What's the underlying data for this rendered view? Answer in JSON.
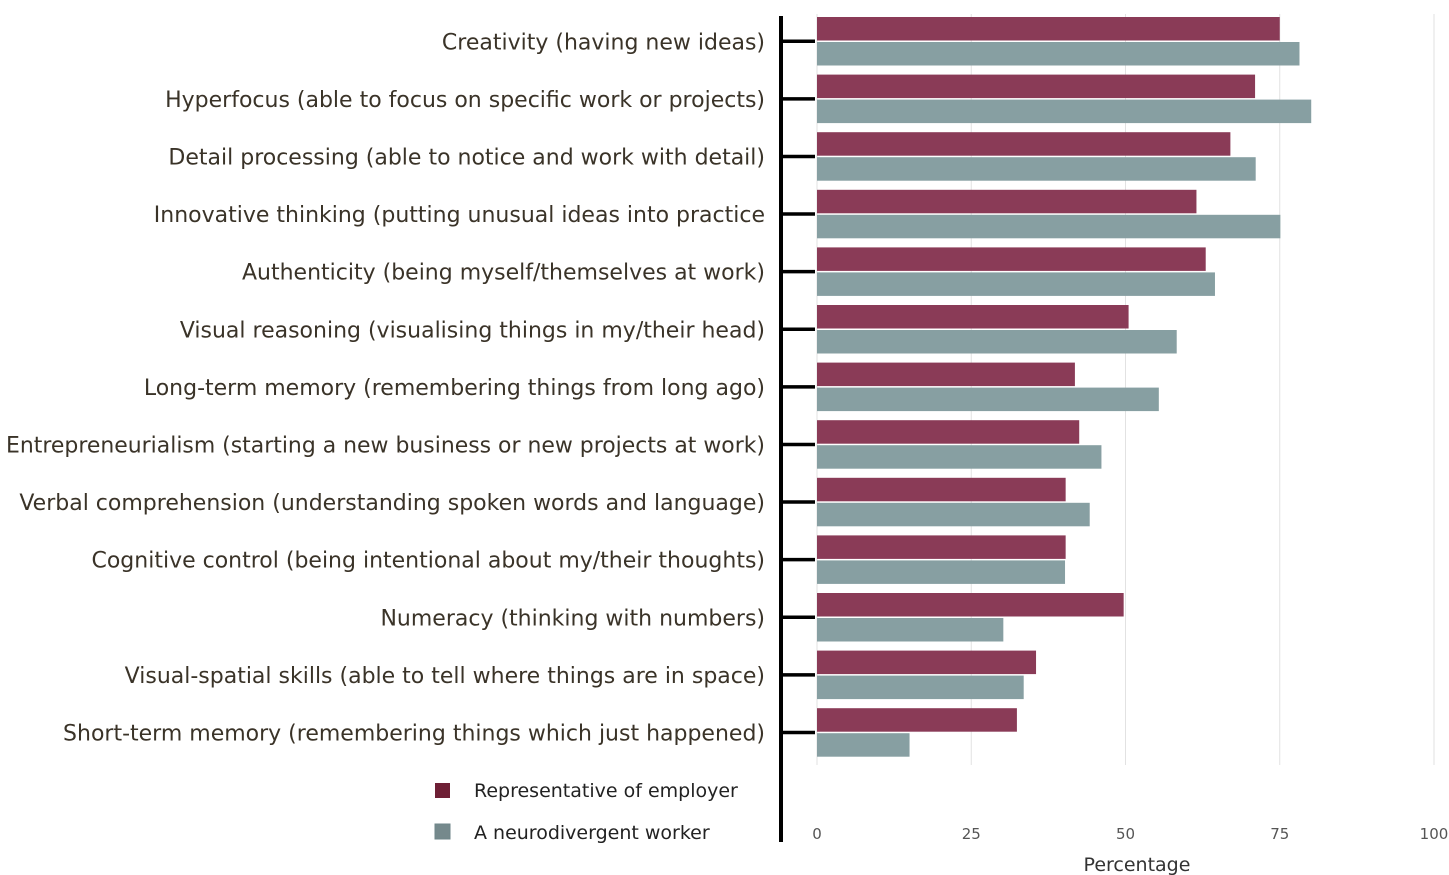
{
  "chart_data": {
    "type": "bar",
    "orientation": "horizontal",
    "categories": [
      "Creativity (having new ideas)",
      "Hyperfocus (able to focus on specific work or projects)",
      "Detail processing (able to notice and work with detail)",
      "Innovative thinking (putting unusual ideas into practice",
      "Authenticity (being myself/themselves at work)",
      "Visual reasoning (visualising things in my/their head)",
      "Long-term memory (remembering things from long ago)",
      "Entrepreneurialism (starting a new business or new projects at work)",
      "Verbal comprehension (understanding spoken words and language)",
      "Cognitive control (being intentional about my/their thoughts)",
      "Numeracy (thinking with numbers)",
      "Visual-spatial skills (able to tell where things are in space)",
      "Short-term memory (remembering things which just happened)"
    ],
    "series": [
      {
        "name": "Representative of employer",
        "color": "#8a3b57",
        "values": [
          75,
          71,
          67,
          61.5,
          63,
          50.5,
          41.8,
          42.5,
          40.3,
          40.3,
          49.7,
          35.5,
          32.4
        ]
      },
      {
        "name": "A neurodivergent worker",
        "color": "#879fa2",
        "values": [
          78.2,
          80.1,
          71.1,
          75.1,
          64.5,
          58.3,
          55.4,
          46.1,
          44.2,
          40.2,
          30.2,
          33.5,
          15
        ]
      }
    ],
    "xlabel": "Percentage",
    "ylabel": "",
    "xlim": [
      0,
      100
    ],
    "xticks": [
      "0",
      "25",
      "50",
      "75",
      "100"
    ],
    "grid": "vertical",
    "legend_position": "bottom-left"
  }
}
